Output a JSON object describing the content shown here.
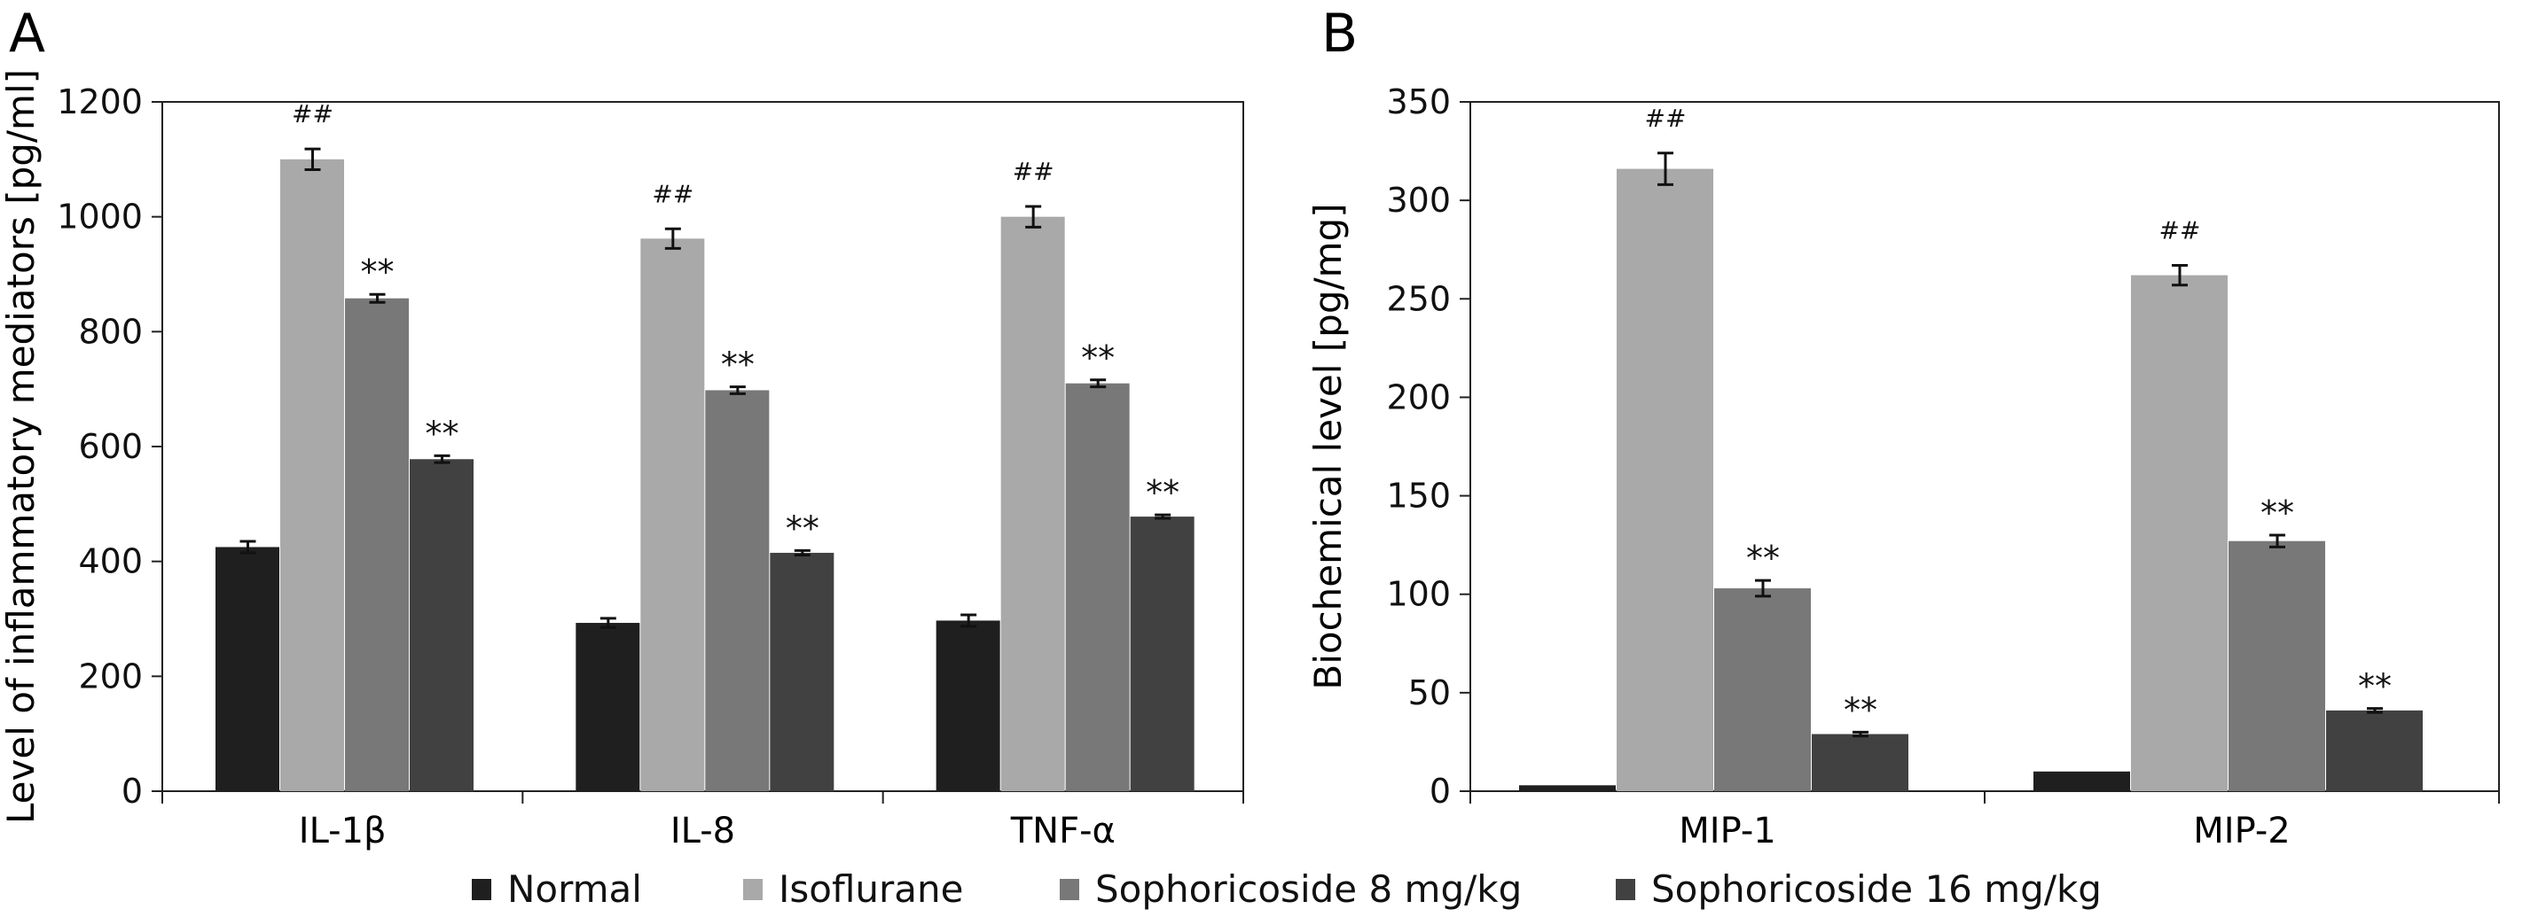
{
  "legend": {
    "entries": [
      {
        "label": "Normal",
        "color": "#1f1f1f"
      },
      {
        "label": "Isoflurane",
        "color": "#a9a9a9"
      },
      {
        "label": "Sophoricoside 8 mg/kg",
        "color": "#787878"
      },
      {
        "label": "Sophoricoside 16 mg/kg",
        "color": "#414141"
      }
    ],
    "placement": "bottom"
  },
  "chart_data": [
    {
      "panel": "A",
      "type": "bar",
      "ylabel": "Level of inflammatory mediators [pg/ml]",
      "ylim": [
        0,
        1200
      ],
      "yticks": [
        "0",
        "200",
        "400",
        "600",
        "800",
        "1000",
        "1200"
      ],
      "grid": false,
      "categories": [
        "IL-1β",
        "IL-8",
        "TNF-α"
      ],
      "series": [
        {
          "name": "Normal",
          "values": [
            425,
            293,
            297
          ],
          "errors": [
            10,
            8,
            10
          ]
        },
        {
          "name": "Isoflurane",
          "values": [
            1100,
            962,
            1000
          ],
          "errors": [
            18,
            17,
            18
          ],
          "annotations": [
            "##",
            "##",
            "##"
          ]
        },
        {
          "name": "Sophoricoside 8 mg/kg",
          "values": [
            858,
            698,
            710
          ],
          "errors": [
            7,
            6,
            6
          ],
          "annotations": [
            "**",
            "**",
            "**"
          ]
        },
        {
          "name": "Sophoricoside 16 mg/kg",
          "values": [
            578,
            415,
            478
          ],
          "errors": [
            6,
            4,
            3
          ],
          "annotations": [
            "**",
            "**",
            "**"
          ]
        }
      ]
    },
    {
      "panel": "B",
      "type": "bar",
      "ylabel": "Biochemical level [pg/mg]",
      "ylim": [
        0,
        350
      ],
      "yticks": [
        "0",
        "50",
        "100",
        "150",
        "200",
        "250",
        "300",
        "350"
      ],
      "grid": false,
      "categories": [
        "MIP-1",
        "MIP-2"
      ],
      "series": [
        {
          "name": "Normal",
          "values": [
            3,
            10
          ],
          "errors": [
            0,
            0
          ]
        },
        {
          "name": "Isoflurane",
          "values": [
            316,
            262
          ],
          "errors": [
            8,
            5
          ],
          "annotations": [
            "##",
            "##"
          ]
        },
        {
          "name": "Sophoricoside 8 mg/kg",
          "values": [
            103,
            127
          ],
          "errors": [
            4,
            3
          ],
          "annotations": [
            "**",
            "**"
          ]
        },
        {
          "name": "Sophoricoside 16 mg/kg",
          "values": [
            29,
            41
          ],
          "errors": [
            1,
            1
          ],
          "annotations": [
            "**",
            "**"
          ]
        }
      ]
    }
  ]
}
